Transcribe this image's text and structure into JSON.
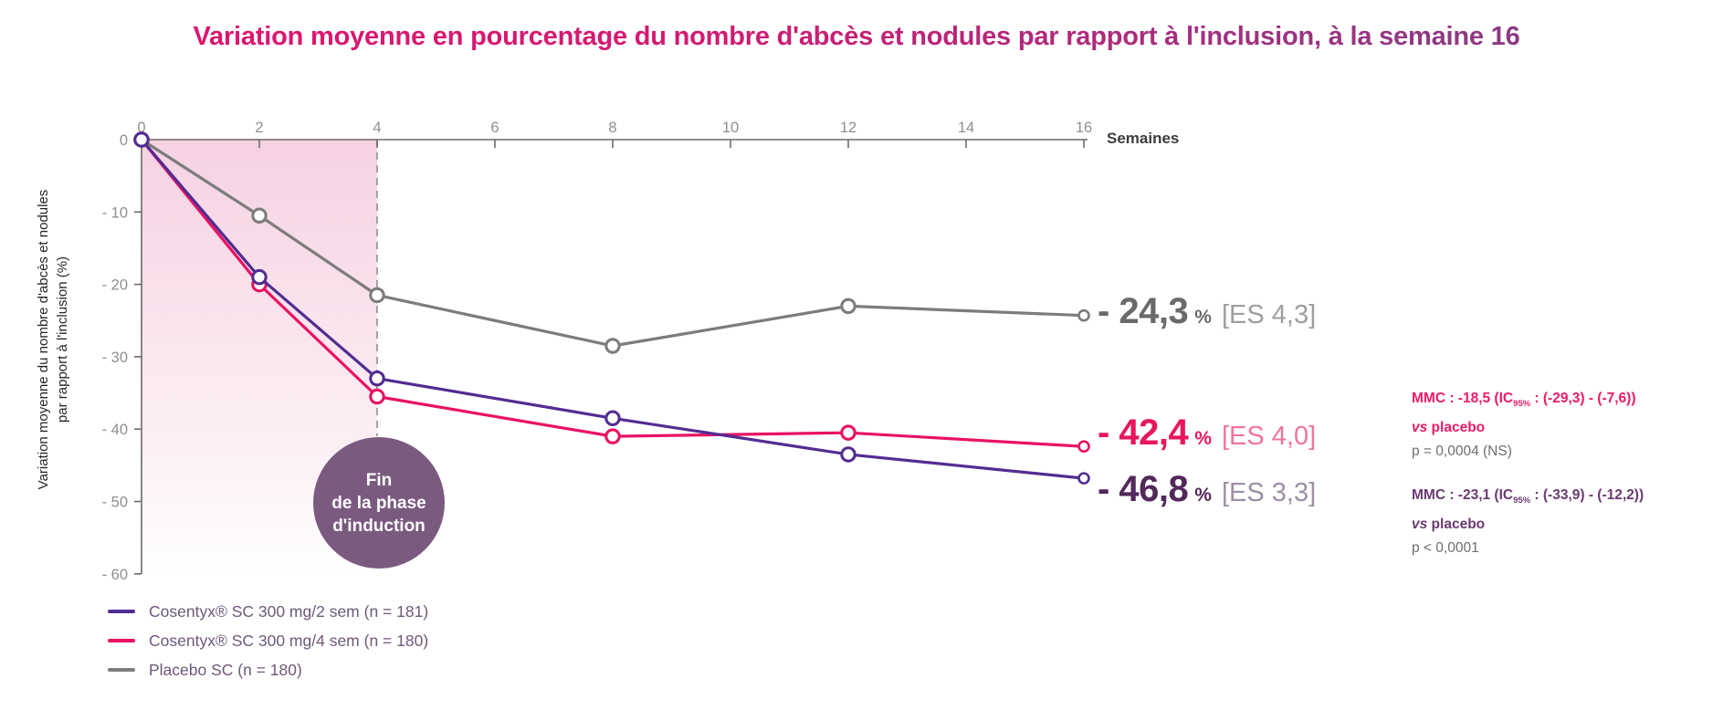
{
  "title": {
    "text": "Variation moyenne en pourcentage du nombre d'abcès et nodules par rapport à l'inclusion, à la semaine 16",
    "color_start": "#e0146f",
    "color_end": "#7c3f86"
  },
  "chart_data": {
    "type": "line",
    "x": [
      0,
      2,
      4,
      8,
      12,
      16
    ],
    "x_ticks": [
      0,
      2,
      4,
      6,
      8,
      10,
      12,
      14,
      16
    ],
    "xlabel": "Semaines",
    "ylabel_line1": "Variation moyenne du nombre d'abcès et nodules",
    "ylabel_line2": "par rapport à l'inclusion (%)",
    "y_ticks": [
      0,
      -10,
      -20,
      -30,
      -40,
      -50,
      -60
    ],
    "y_tick_labels": [
      "0",
      "- 10",
      "- 20",
      "- 30",
      "- 40",
      "- 50",
      "- 60"
    ],
    "xlim": [
      0,
      16
    ],
    "ylim": [
      -60,
      0
    ],
    "grid": false,
    "legend_position": "bottom-left",
    "series": [
      {
        "name": "Cosentyx® SC 300 mg/2 sem (n = 181)",
        "color": "#522d91",
        "values": [
          0,
          -19,
          -33,
          -38.5,
          -43.5,
          -46.8
        ]
      },
      {
        "name": "Cosentyx® SC 300 mg/4 sem (n = 180)",
        "color": "#e91263",
        "values": [
          0,
          -20,
          -35.5,
          -41,
          -40.5,
          -42.4
        ]
      },
      {
        "name": "Placebo SC (n = 180)",
        "color": "#7c7c7c",
        "values": [
          0,
          -10.5,
          -21.5,
          -28.5,
          -23,
          -24.3
        ]
      }
    ],
    "induction_shading": {
      "week_start": 0,
      "week_end": 4,
      "color": "#f6d2e2"
    },
    "induction_circle": {
      "lines": [
        "Fin",
        "de la phase",
        "d'induction"
      ],
      "color": "#7b5a80"
    }
  },
  "end_labels": [
    {
      "num": "- 24,3",
      "pct": "%",
      "es": "[ES 4,3]",
      "num_color": "#6a6a6a",
      "es_color": "#9e9e9e"
    },
    {
      "num": "- 42,4",
      "pct": "%",
      "es": "[ES 4,0]",
      "num_color": "#e8155f",
      "es_color": "#f173a0"
    },
    {
      "num": "- 46,8",
      "pct": "%",
      "es": "[ES 3,3]",
      "num_color": "#53285a",
      "es_color": "#9d8fa6"
    }
  ],
  "annotations": [
    {
      "color": "#ee1a68",
      "mmc_pre": "MMC : -18,5 (IC",
      "sub": "95%",
      "mmc_post": " : (-29,3) - (-7,6))",
      "vs": "vs",
      "vs_rest": " placebo",
      "p": "p = 0,0004 (NS)",
      "p_color": "#6e6e6e"
    },
    {
      "color": "#6b3a72",
      "mmc_pre": "MMC : -23,1 (IC",
      "sub": "95%",
      "mmc_post": " : (-33,9) - (-12,2))",
      "vs": "vs",
      "vs_rest": " placebo",
      "p": "p < 0,0001",
      "p_color": "#6e6e6e"
    }
  ]
}
